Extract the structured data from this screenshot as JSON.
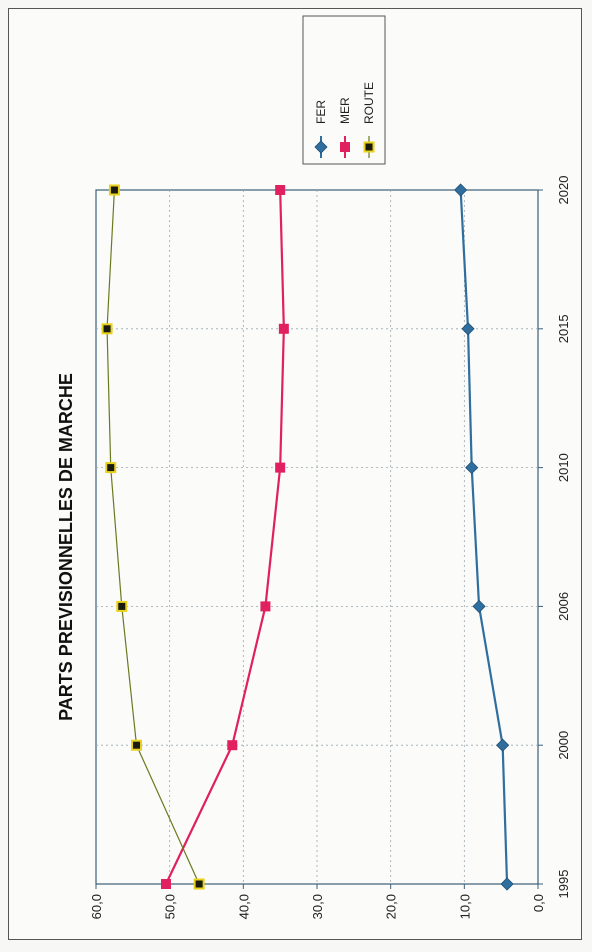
{
  "chart_data": {
    "type": "line",
    "title": "PARTS PREVISIONNELLES DE MARCHE",
    "xlabel": "",
    "ylabel": "",
    "categories": [
      "1995",
      "2000",
      "2006",
      "2010",
      "2015",
      "2020"
    ],
    "y_ticks": [
      "0,0",
      "10,0",
      "20,0",
      "30,0",
      "40,0",
      "50,0",
      "60,0"
    ],
    "ylim": [
      0,
      60
    ],
    "grid": true,
    "legend_position": "top-right",
    "orientation": "rotated-90-ccw",
    "series": [
      {
        "name": "FER",
        "color": "#2f6f9f",
        "marker": "diamond",
        "values": [
          4.2,
          4.8,
          8.0,
          9.0,
          9.5,
          10.5
        ]
      },
      {
        "name": "MER",
        "color": "#e02060",
        "marker": "square",
        "values": [
          50.5,
          41.5,
          37.0,
          35.0,
          34.5,
          35.0
        ]
      },
      {
        "name": "ROUTE",
        "color": "#6a7a20",
        "marker": "square-yellow",
        "values": [
          46.0,
          54.5,
          56.5,
          58.0,
          58.5,
          57.5
        ]
      }
    ]
  }
}
